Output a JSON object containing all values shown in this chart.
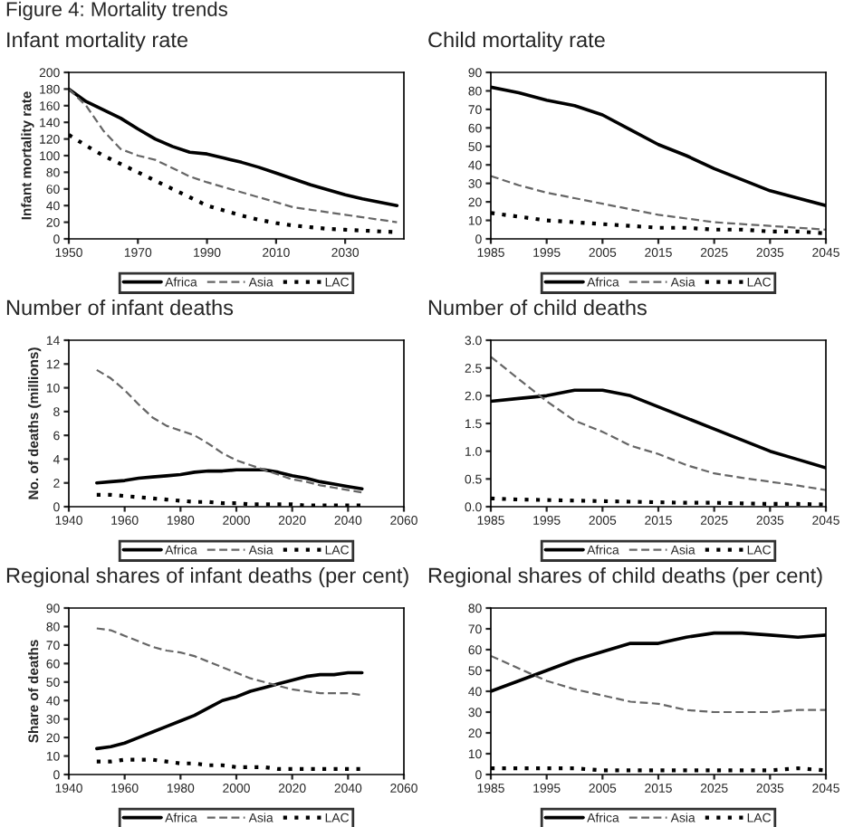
{
  "chart_data": [
    {
      "type": "line",
      "title": "Infant mortality rate",
      "annotations": [
        "Figure 4: Mortality trends"
      ],
      "ylabel": "Infant mortality rate",
      "x": [
        1950,
        1955,
        1960,
        1965,
        1970,
        1975,
        1980,
        1985,
        1990,
        1995,
        2000,
        2005,
        2010,
        2015,
        2020,
        2025,
        2030,
        2035,
        2040,
        2045
      ],
      "xlim": [
        1950,
        2047
      ],
      "xticks": [
        1950,
        1970,
        1990,
        2010,
        2030
      ],
      "ylim": [
        0,
        200
      ],
      "yticks": [
        0,
        20,
        40,
        60,
        80,
        100,
        120,
        140,
        160,
        180,
        200
      ],
      "legend": "bottom",
      "grid": false,
      "series": [
        {
          "name": "Africa",
          "color": "#000000",
          "line_style": "solid",
          "values": [
            180,
            165,
            155,
            145,
            132,
            120,
            111,
            104,
            102,
            97,
            92,
            86,
            79,
            72,
            65,
            59,
            53,
            48,
            44,
            40
          ]
        },
        {
          "name": "Asia",
          "color": "#666666",
          "line_style": "dashed",
          "values": [
            180,
            160,
            130,
            108,
            100,
            95,
            85,
            75,
            68,
            62,
            56,
            50,
            44,
            38,
            35,
            32,
            29,
            26,
            23,
            20
          ]
        },
        {
          "name": "LAC",
          "color": "#000000",
          "line_style": "dotted",
          "values": [
            125,
            112,
            100,
            90,
            80,
            70,
            60,
            50,
            40,
            34,
            28,
            23,
            19,
            16,
            14,
            12,
            11,
            10,
            9,
            8
          ]
        }
      ]
    },
    {
      "type": "line",
      "title": "Child mortality rate",
      "x": [
        1985,
        1990,
        1995,
        2000,
        2005,
        2010,
        2015,
        2020,
        2025,
        2030,
        2035,
        2040,
        2045
      ],
      "xlim": [
        1985,
        2045
      ],
      "xticks": [
        1985,
        1995,
        2005,
        2015,
        2025,
        2035,
        2045
      ],
      "ylim": [
        0,
        90
      ],
      "yticks": [
        0,
        10,
        20,
        30,
        40,
        50,
        60,
        70,
        80,
        90
      ],
      "legend": "bottom",
      "grid": false,
      "series": [
        {
          "name": "Africa",
          "color": "#000000",
          "line_style": "solid",
          "values": [
            82,
            79,
            75,
            72,
            67,
            59,
            51,
            45,
            38,
            32,
            26,
            22,
            18
          ]
        },
        {
          "name": "Asia",
          "color": "#666666",
          "line_style": "dashed",
          "values": [
            34,
            29,
            25,
            22,
            19,
            16,
            13,
            11,
            9,
            8,
            7,
            6,
            5
          ]
        },
        {
          "name": "LAC",
          "color": "#000000",
          "line_style": "dotted",
          "values": [
            14,
            12,
            10,
            9,
            8,
            7,
            6,
            6,
            5,
            5,
            4,
            4,
            3
          ]
        }
      ]
    },
    {
      "type": "line",
      "title": "Number of infant deaths",
      "ylabel": "No. of deaths (millions)",
      "x": [
        1950,
        1955,
        1960,
        1965,
        1970,
        1975,
        1980,
        1985,
        1990,
        1995,
        2000,
        2005,
        2010,
        2015,
        2020,
        2025,
        2030,
        2035,
        2040,
        2045
      ],
      "xlim": [
        1940,
        2060
      ],
      "xticks": [
        1940,
        1960,
        1980,
        2000,
        2020,
        2040,
        2060
      ],
      "ylim": [
        0,
        14
      ],
      "yticks": [
        0,
        2,
        4,
        6,
        8,
        10,
        12,
        14
      ],
      "legend": "bottom",
      "grid": false,
      "series": [
        {
          "name": "Africa",
          "color": "#000000",
          "line_style": "solid",
          "values": [
            2.0,
            2.1,
            2.2,
            2.4,
            2.5,
            2.6,
            2.7,
            2.9,
            3.0,
            3.0,
            3.1,
            3.1,
            3.1,
            2.9,
            2.6,
            2.4,
            2.1,
            1.9,
            1.7,
            1.5
          ]
        },
        {
          "name": "Asia",
          "color": "#666666",
          "line_style": "dashed",
          "values": [
            11.5,
            10.8,
            9.8,
            8.6,
            7.5,
            6.8,
            6.4,
            6.0,
            5.3,
            4.5,
            3.9,
            3.5,
            3.1,
            2.7,
            2.3,
            2.1,
            1.8,
            1.6,
            1.4,
            1.2
          ]
        },
        {
          "name": "LAC",
          "color": "#000000",
          "line_style": "dotted",
          "values": [
            1.0,
            1.0,
            0.9,
            0.8,
            0.7,
            0.6,
            0.5,
            0.4,
            0.4,
            0.3,
            0.3,
            0.2,
            0.2,
            0.2,
            0.2,
            0.1,
            0.1,
            0.1,
            0.1,
            0.1
          ]
        }
      ]
    },
    {
      "type": "line",
      "title": "Number of child deaths",
      "x": [
        1985,
        1990,
        1995,
        2000,
        2005,
        2010,
        2015,
        2020,
        2025,
        2030,
        2035,
        2040,
        2045
      ],
      "xlim": [
        1985,
        2045
      ],
      "xticks": [
        1985,
        1995,
        2005,
        2015,
        2025,
        2035,
        2045
      ],
      "ylim": [
        0,
        3
      ],
      "yticks": [
        {
          "value": 0,
          "label": "0.0"
        },
        {
          "value": 0.5,
          "label": "0.5"
        },
        {
          "value": 1,
          "label": "1.0"
        },
        {
          "value": 1.5,
          "label": "1.5"
        },
        {
          "value": 2,
          "label": "2.0"
        },
        {
          "value": 2.5,
          "label": "2.5"
        },
        {
          "value": 3,
          "label": "3.0"
        }
      ],
      "legend": "bottom",
      "grid": false,
      "series": [
        {
          "name": "Africa",
          "color": "#000000",
          "line_style": "solid",
          "values": [
            1.9,
            1.95,
            2.0,
            2.1,
            2.1,
            2.0,
            1.8,
            1.6,
            1.4,
            1.2,
            1.0,
            0.85,
            0.7
          ]
        },
        {
          "name": "Asia",
          "color": "#666666",
          "line_style": "dashed",
          "values": [
            2.7,
            2.3,
            1.9,
            1.55,
            1.35,
            1.1,
            0.95,
            0.75,
            0.6,
            0.52,
            0.45,
            0.38,
            0.3
          ]
        },
        {
          "name": "LAC",
          "color": "#000000",
          "line_style": "dotted",
          "values": [
            0.15,
            0.13,
            0.12,
            0.11,
            0.1,
            0.09,
            0.08,
            0.07,
            0.07,
            0.06,
            0.05,
            0.05,
            0.04
          ]
        }
      ]
    },
    {
      "type": "line",
      "title": "Regional shares of infant deaths (per cent)",
      "ylabel": "Share of deaths",
      "x": [
        1950,
        1955,
        1960,
        1965,
        1970,
        1975,
        1980,
        1985,
        1990,
        1995,
        2000,
        2005,
        2010,
        2015,
        2020,
        2025,
        2030,
        2035,
        2040,
        2045
      ],
      "xlim": [
        1940,
        2060
      ],
      "xticks": [
        1940,
        1960,
        1980,
        2000,
        2020,
        2040,
        2060
      ],
      "ylim": [
        0,
        90
      ],
      "yticks": [
        0,
        10,
        20,
        30,
        40,
        50,
        60,
        70,
        80,
        90
      ],
      "legend": "bottom",
      "grid": false,
      "series": [
        {
          "name": "Africa",
          "color": "#000000",
          "line_style": "solid",
          "values": [
            14,
            15,
            17,
            20,
            23,
            26,
            29,
            32,
            36,
            40,
            42,
            45,
            47,
            49,
            51,
            53,
            54,
            54,
            55,
            55
          ]
        },
        {
          "name": "Asia",
          "color": "#666666",
          "line_style": "dashed",
          "values": [
            79,
            78,
            75,
            72,
            69,
            67,
            66,
            64,
            61,
            58,
            55,
            52,
            50,
            48,
            46,
            45,
            44,
            44,
            44,
            43
          ]
        },
        {
          "name": "LAC",
          "color": "#000000",
          "line_style": "dotted",
          "values": [
            7,
            7,
            8,
            8,
            8,
            7,
            6,
            6,
            5,
            5,
            4,
            4,
            4,
            3,
            3,
            3,
            3,
            3,
            3,
            3
          ]
        }
      ]
    },
    {
      "type": "line",
      "title": "Regional shares of child deaths (per cent)",
      "x": [
        1985,
        1990,
        1995,
        2000,
        2005,
        2010,
        2015,
        2020,
        2025,
        2030,
        2035,
        2040,
        2045
      ],
      "xlim": [
        1985,
        2045
      ],
      "xticks": [
        1985,
        1995,
        2005,
        2015,
        2025,
        2035,
        2045
      ],
      "ylim": [
        0,
        80
      ],
      "yticks": [
        0,
        10,
        20,
        30,
        40,
        50,
        60,
        70,
        80
      ],
      "legend": "bottom",
      "grid": false,
      "series": [
        {
          "name": "Africa",
          "color": "#000000",
          "line_style": "solid",
          "values": [
            40,
            45,
            50,
            55,
            59,
            63,
            63,
            66,
            68,
            68,
            67,
            66,
            67
          ]
        },
        {
          "name": "Asia",
          "color": "#666666",
          "line_style": "dashed",
          "values": [
            57,
            51,
            45,
            41,
            38,
            35,
            34,
            31,
            30,
            30,
            30,
            31,
            31
          ]
        },
        {
          "name": "LAC",
          "color": "#000000",
          "line_style": "dotted",
          "values": [
            3,
            3,
            3,
            3,
            2,
            2,
            2,
            2,
            2,
            2,
            2,
            3,
            2
          ]
        }
      ]
    }
  ]
}
